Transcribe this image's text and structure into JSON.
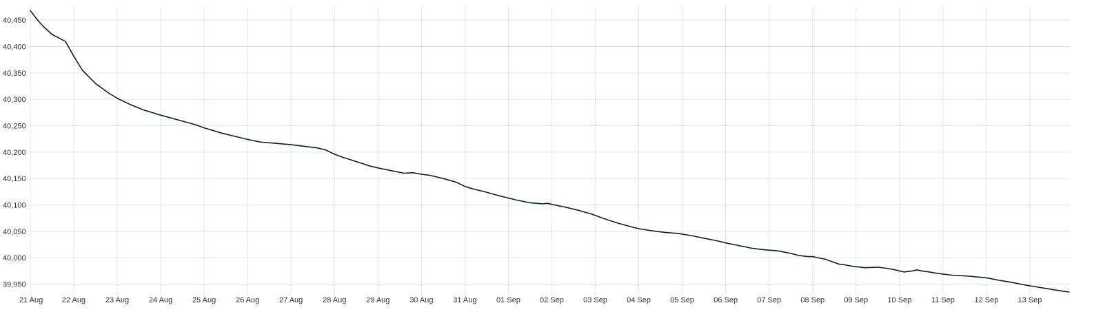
{
  "chart_data": {
    "type": "line",
    "title": "",
    "xlabel": "",
    "ylabel": "",
    "grid": true,
    "legend": "none",
    "line_color": "#0f1a36",
    "grid_color": "#e3e3e3",
    "x_ticks": [
      "21 Aug",
      "22 Aug",
      "23 Aug",
      "24 Aug",
      "25 Aug",
      "26 Aug",
      "27 Aug",
      "28 Aug",
      "29 Aug",
      "30 Aug",
      "31 Aug",
      "01 Sep",
      "02 Sep",
      "03 Sep",
      "04 Sep",
      "05 Sep",
      "06 Sep",
      "07 Sep",
      "08 Sep",
      "09 Sep",
      "10 Sep",
      "11 Sep",
      "12 Sep",
      "13 Sep"
    ],
    "y_ticks": [
      "39,950",
      "40,000",
      "40,050",
      "40,100",
      "40,150",
      "40,200",
      "40,250",
      "40,300",
      "40,350",
      "40,400",
      "40,450"
    ],
    "y_tick_values": [
      39950,
      40000,
      40050,
      40100,
      40150,
      40200,
      40250,
      40300,
      40350,
      40400,
      40450
    ],
    "ylim": [
      39935,
      40475
    ],
    "xlim_days": [
      -0.03,
      23.92
    ],
    "series": [
      {
        "x_days": [
          0,
          0.15,
          0.3,
          0.5,
          0.8,
          0.82,
          1.0,
          1.2,
          1.5,
          1.8,
          2.0,
          2.3,
          2.6,
          3.0,
          3.4,
          3.8,
          4.0,
          4.4,
          4.8,
          5.0,
          5.3,
          5.6,
          6.0,
          6.3,
          6.6,
          6.8,
          7.0,
          7.2,
          7.5,
          7.8,
          8.0,
          8.3,
          8.6,
          8.8,
          9.0,
          9.2,
          9.5,
          9.8,
          10.0,
          10.2,
          10.5,
          10.8,
          11.0,
          11.2,
          11.5,
          11.8,
          11.9,
          12.0,
          12.3,
          12.6,
          12.9,
          13.2,
          13.5,
          13.8,
          14.0,
          14.3,
          14.6,
          14.9,
          15.2,
          15.5,
          15.8,
          16.0,
          16.3,
          16.6,
          16.9,
          17.2,
          17.5,
          17.7,
          17.9,
          18.0,
          18.3,
          18.5,
          18.6,
          18.7,
          18.9,
          19.2,
          19.5,
          19.7,
          19.9,
          20.1,
          20.3,
          20.4,
          20.5,
          20.6,
          20.9,
          21.2,
          21.6,
          22.0,
          22.3,
          22.6,
          22.9,
          23.2,
          23.5,
          23.8,
          23.9
        ],
        "y": [
          40468,
          40452,
          40438,
          40423,
          40410,
          40408,
          40382,
          40355,
          40330,
          40312,
          40302,
          40290,
          40280,
          40270,
          40261,
          40252,
          40246,
          40236,
          40228,
          40224,
          40219,
          40217,
          40214,
          40211,
          40208,
          40204,
          40196,
          40190,
          40182,
          40174,
          40170,
          40165,
          40160,
          40161,
          40158,
          40156,
          40150,
          40143,
          40135,
          40130,
          40124,
          40117,
          40113,
          40109,
          40104,
          40102,
          40103,
          40101,
          40096,
          40090,
          40083,
          40074,
          40066,
          40059,
          40055,
          40051,
          40048,
          40046,
          40042,
          40037,
          40032,
          40028,
          40023,
          40018,
          40015,
          40013,
          40008,
          40004,
          40002,
          40002,
          39997,
          39991,
          39988,
          39987,
          39984,
          39981,
          39982,
          39980,
          39977,
          39973,
          39975,
          39977,
          39975,
          39974,
          39970,
          39967,
          39965,
          39962,
          39957,
          39953,
          39948,
          39944,
          39940,
          39936,
          39935
        ]
      }
    ]
  }
}
